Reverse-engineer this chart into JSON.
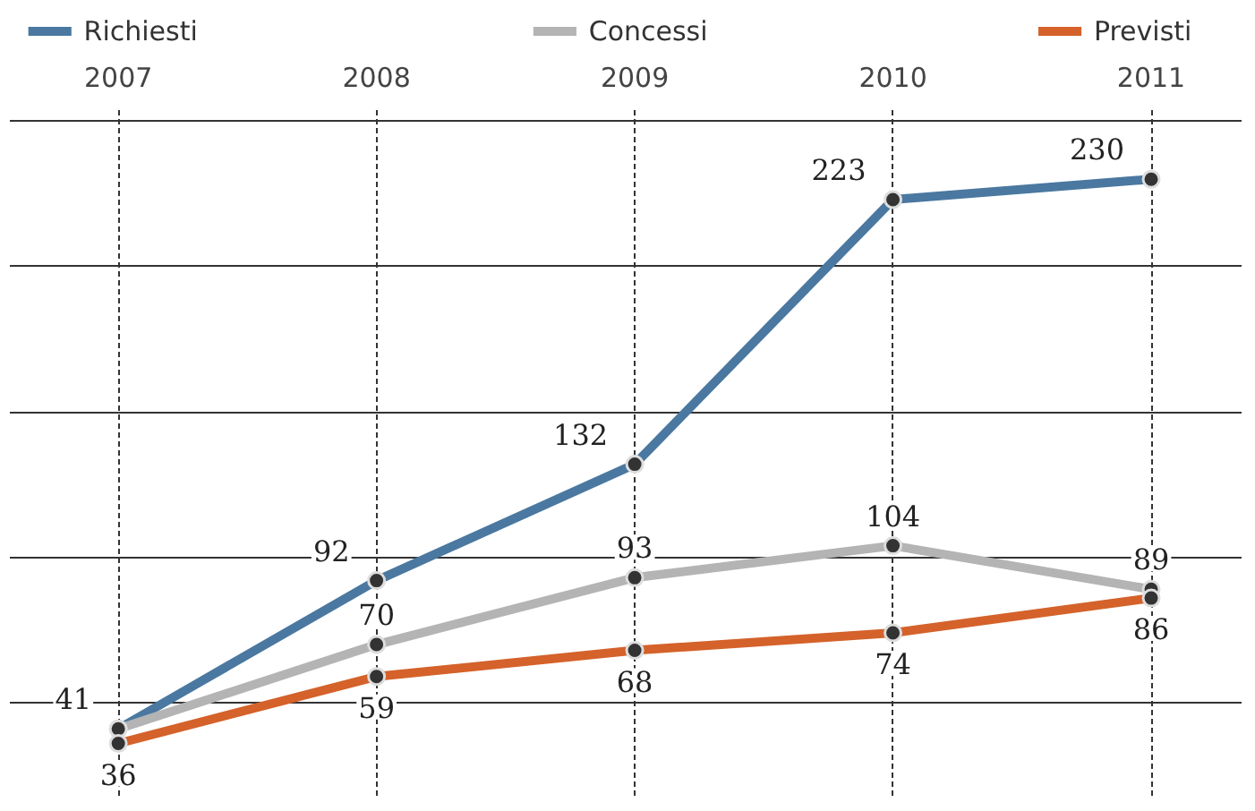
{
  "chart_data": {
    "type": "line",
    "categories": [
      "2007",
      "2008",
      "2009",
      "2010",
      "2011"
    ],
    "series": [
      {
        "name": "Richiesti",
        "color": "#4a78a0",
        "values": [
          41,
          92,
          132,
          223,
          230
        ],
        "value_labels": [
          "41",
          "92",
          "132",
          "223",
          "230"
        ]
      },
      {
        "name": "Concessi",
        "color": "#b4b4b4",
        "values": [
          41,
          70,
          93,
          104,
          89
        ],
        "value_labels": [
          null,
          "70",
          "93",
          "104",
          "89"
        ]
      },
      {
        "name": "Previsti",
        "color": "#d4622a",
        "values": [
          36,
          59,
          68,
          74,
          86
        ],
        "value_labels": [
          "36",
          "59",
          "68",
          "74",
          "86"
        ]
      }
    ],
    "ylim": [
      18,
      255
    ],
    "yticks": [
      {
        "value": 50,
        "label": null
      },
      {
        "value": 100,
        "label": null
      },
      {
        "value": 150,
        "label": null
      },
      {
        "value": 200,
        "label": null
      },
      {
        "value": 250,
        "label": null
      }
    ],
    "tick_labels": "x",
    "grid": true,
    "legend": "top",
    "marker": "circle",
    "line_style": "solid"
  }
}
